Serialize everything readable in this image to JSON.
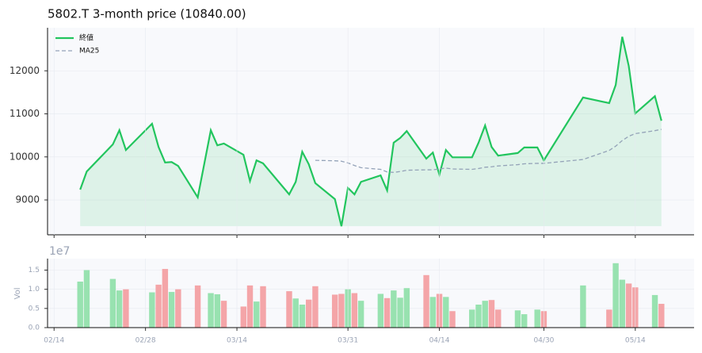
{
  "chart_data": [
    {
      "type": "line",
      "title": "5802.T  3-month price (10840.00)",
      "x": [
        "02/18",
        "02/19",
        "02/23",
        "02/24",
        "02/25",
        "03/01",
        "03/02",
        "03/03",
        "03/04",
        "03/05",
        "03/08",
        "03/10",
        "03/11",
        "03/12",
        "03/15",
        "03/16",
        "03/17",
        "03/18",
        "03/22",
        "03/23",
        "03/24",
        "03/25",
        "03/26",
        "03/29",
        "03/30",
        "03/31",
        "04/01",
        "04/02",
        "04/05",
        "04/06",
        "04/07",
        "04/08",
        "04/09",
        "04/12",
        "04/13",
        "04/14",
        "04/15",
        "04/16",
        "04/19",
        "04/20",
        "04/21",
        "04/22",
        "04/23",
        "04/26",
        "04/27",
        "04/29",
        "04/30",
        "05/06",
        "05/10",
        "05/11",
        "05/12",
        "05/13",
        "05/14",
        "05/17",
        "05/18"
      ],
      "series": [
        {
          "name": "終値",
          "color": "#22c55e",
          "fill": true,
          "values": [
            9240,
            9660,
            10290,
            10620,
            10160,
            10770,
            10230,
            9870,
            9880,
            9790,
            9060,
            10620,
            10270,
            10310,
            10050,
            9440,
            9920,
            9850,
            9130,
            9420,
            10120,
            9830,
            9390,
            9020,
            8390,
            9280,
            9130,
            9420,
            9570,
            9220,
            10330,
            10440,
            10600,
            9960,
            10100,
            9590,
            10160,
            9990,
            9990,
            10330,
            10730,
            10230,
            10030,
            10090,
            10220,
            10220,
            9920,
            11380,
            11250,
            11670,
            12790,
            12110,
            11010,
            11410,
            10840
          ]
        },
        {
          "name": "MA25",
          "color": "#94a3b8",
          "dashed": true,
          "values": [
            null,
            null,
            null,
            null,
            null,
            null,
            null,
            null,
            null,
            null,
            null,
            null,
            null,
            null,
            null,
            null,
            null,
            null,
            null,
            null,
            null,
            null,
            9920,
            9910,
            9900,
            9860,
            9800,
            9750,
            9710,
            9650,
            9640,
            9660,
            9690,
            9700,
            9700,
            9720,
            9740,
            9720,
            9710,
            9730,
            9760,
            9770,
            9790,
            9820,
            9840,
            9850,
            9850,
            9940,
            10150,
            10250,
            10380,
            10480,
            10540,
            10610,
            10640
          ]
        }
      ],
      "xlim": [
        "02/13",
        "05/23"
      ],
      "ylim": [
        8190,
        13000
      ],
      "yticks": [
        9000,
        10000,
        11000,
        12000
      ],
      "grid": true,
      "legend": "upper left"
    },
    {
      "type": "bar",
      "y_label": "Vol",
      "offset_label": "1e7",
      "x": [
        "02/18",
        "02/19",
        "02/23",
        "02/24",
        "02/25",
        "03/01",
        "03/02",
        "03/03",
        "03/04",
        "03/05",
        "03/08",
        "03/10",
        "03/11",
        "03/12",
        "03/15",
        "03/16",
        "03/17",
        "03/18",
        "03/22",
        "03/23",
        "03/24",
        "03/25",
        "03/26",
        "03/29",
        "03/30",
        "03/31",
        "04/01",
        "04/02",
        "04/05",
        "04/06",
        "04/07",
        "04/08",
        "04/09",
        "04/12",
        "04/13",
        "04/14",
        "04/15",
        "04/16",
        "04/19",
        "04/20",
        "04/21",
        "04/22",
        "04/23",
        "04/26",
        "04/27",
        "04/29",
        "04/30",
        "05/06",
        "05/10",
        "05/11",
        "05/12",
        "05/13",
        "05/14",
        "05/17",
        "05/18"
      ],
      "values": [
        1.2,
        1.5,
        1.27,
        0.97,
        1.0,
        0.92,
        1.12,
        1.53,
        0.93,
        1.0,
        1.1,
        0.9,
        0.87,
        0.7,
        0.55,
        1.1,
        0.68,
        1.08,
        0.95,
        0.76,
        0.6,
        0.73,
        1.08,
        0.86,
        0.88,
        1.0,
        0.9,
        0.7,
        0.88,
        0.77,
        0.97,
        0.78,
        1.03,
        1.37,
        0.8,
        0.88,
        0.8,
        0.43,
        0.47,
        0.6,
        0.7,
        0.72,
        0.47,
        0.45,
        0.35,
        0.47,
        0.43,
        1.1,
        0.47,
        1.68,
        1.25,
        1.15,
        1.05,
        0.85,
        0.62
      ],
      "colors": [
        "#98e2b0",
        "#98e2b0",
        "#98e2b0",
        "#98e2b0",
        "#f4a5a8",
        "#98e2b0",
        "#f4a5a8",
        "#f4a5a8",
        "#98e2b0",
        "#f4a5a8",
        "#f4a5a8",
        "#98e2b0",
        "#98e2b0",
        "#f4a5a8",
        "#f4a5a8",
        "#f4a5a8",
        "#98e2b0",
        "#f4a5a8",
        "#f4a5a8",
        "#98e2b0",
        "#98e2b0",
        "#f4a5a8",
        "#f4a5a8",
        "#f4a5a8",
        "#f4a5a8",
        "#98e2b0",
        "#f4a5a8",
        "#98e2b0",
        "#98e2b0",
        "#f4a5a8",
        "#98e2b0",
        "#98e2b0",
        "#98e2b0",
        "#f4a5a8",
        "#98e2b0",
        "#f4a5a8",
        "#98e2b0",
        "#f4a5a8",
        "#98e2b0",
        "#98e2b0",
        "#98e2b0",
        "#f4a5a8",
        "#f4a5a8",
        "#98e2b0",
        "#98e2b0",
        "#98e2b0",
        "#f4a5a8",
        "#98e2b0",
        "#f4a5a8",
        "#98e2b0",
        "#98e2b0",
        "#f4a5a8",
        "#f4a5a8",
        "#98e2b0",
        "#f4a5a8"
      ],
      "xlim": [
        "02/13",
        "05/23"
      ],
      "xticks": [
        "02/14",
        "02/28",
        "03/14",
        "03/31",
        "04/14",
        "04/30",
        "05/14"
      ],
      "ylim": [
        0,
        1.8
      ],
      "yticks": [
        {
          "value": 0,
          "label": "0.0"
        },
        {
          "value": 0.5,
          "label": "0.5"
        },
        {
          "value": 1,
          "label": "1.0"
        },
        {
          "value": 1.5,
          "label": "1.5"
        }
      ],
      "grid": true
    }
  ]
}
